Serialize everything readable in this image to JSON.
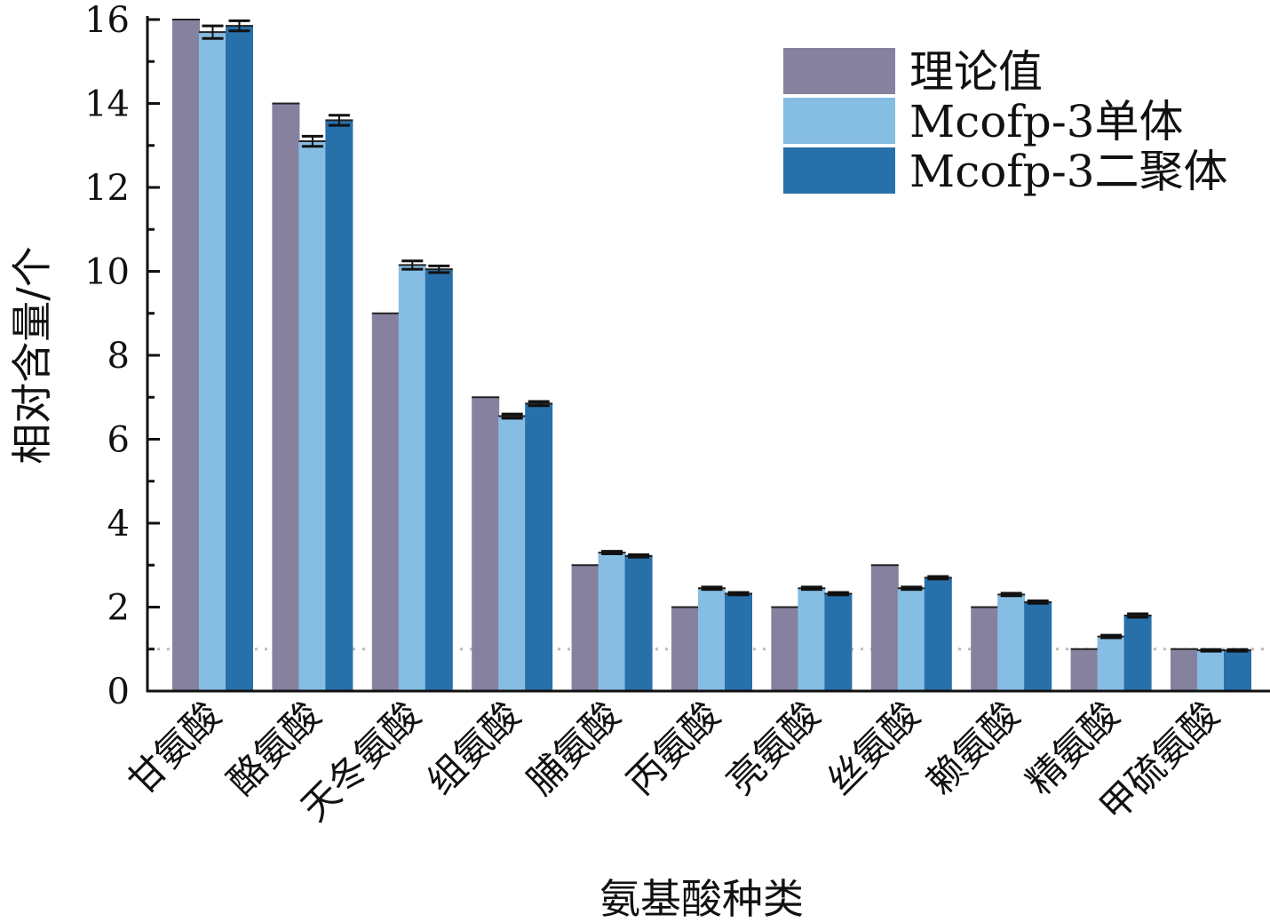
{
  "chart_data": {
    "type": "bar",
    "xlabel": "氨基酸种类",
    "ylabel": "相对含量/个",
    "ylim": [
      0,
      16
    ],
    "yticks": [
      0,
      2,
      4,
      6,
      8,
      10,
      12,
      14,
      16
    ],
    "categories": [
      "甘氨酸",
      "酪氨酸",
      "天冬氨酸",
      "组氨酸",
      "脯氨酸",
      "丙氨酸",
      "亮氨酸",
      "丝氨酸",
      "赖氨酸",
      "精氨酸",
      "甲硫氨酸"
    ],
    "series": [
      {
        "name": "理论值",
        "color": "#8781a0",
        "values": [
          16,
          14,
          9,
          7,
          3,
          2,
          2,
          3,
          2,
          1,
          1
        ],
        "errors": [
          0,
          0,
          0,
          0,
          0,
          0,
          0,
          0,
          0,
          0,
          0
        ]
      },
      {
        "name": "Mcofp-3单体",
        "color": "#86bde3",
        "values": [
          15.7,
          13.1,
          10.15,
          6.55,
          3.3,
          2.45,
          2.45,
          2.45,
          2.3,
          1.3,
          0.97
        ],
        "errors": [
          0.15,
          0.12,
          0.1,
          0.05,
          0.03,
          0.03,
          0.03,
          0.03,
          0.03,
          0.03,
          0.02
        ]
      },
      {
        "name": "Mcofp-3二聚体",
        "color": "#2870aa",
        "values": [
          15.85,
          13.6,
          10.05,
          6.85,
          3.22,
          2.32,
          2.32,
          2.7,
          2.12,
          1.8,
          0.97
        ],
        "errors": [
          0.12,
          0.12,
          0.08,
          0.05,
          0.03,
          0.03,
          0.03,
          0.03,
          0.03,
          0.04,
          0.02
        ]
      }
    ],
    "reference_line": {
      "y": 1,
      "style": "dotted",
      "color": "#bbbbbb"
    },
    "legend_position": "top-right",
    "grid": false
  }
}
